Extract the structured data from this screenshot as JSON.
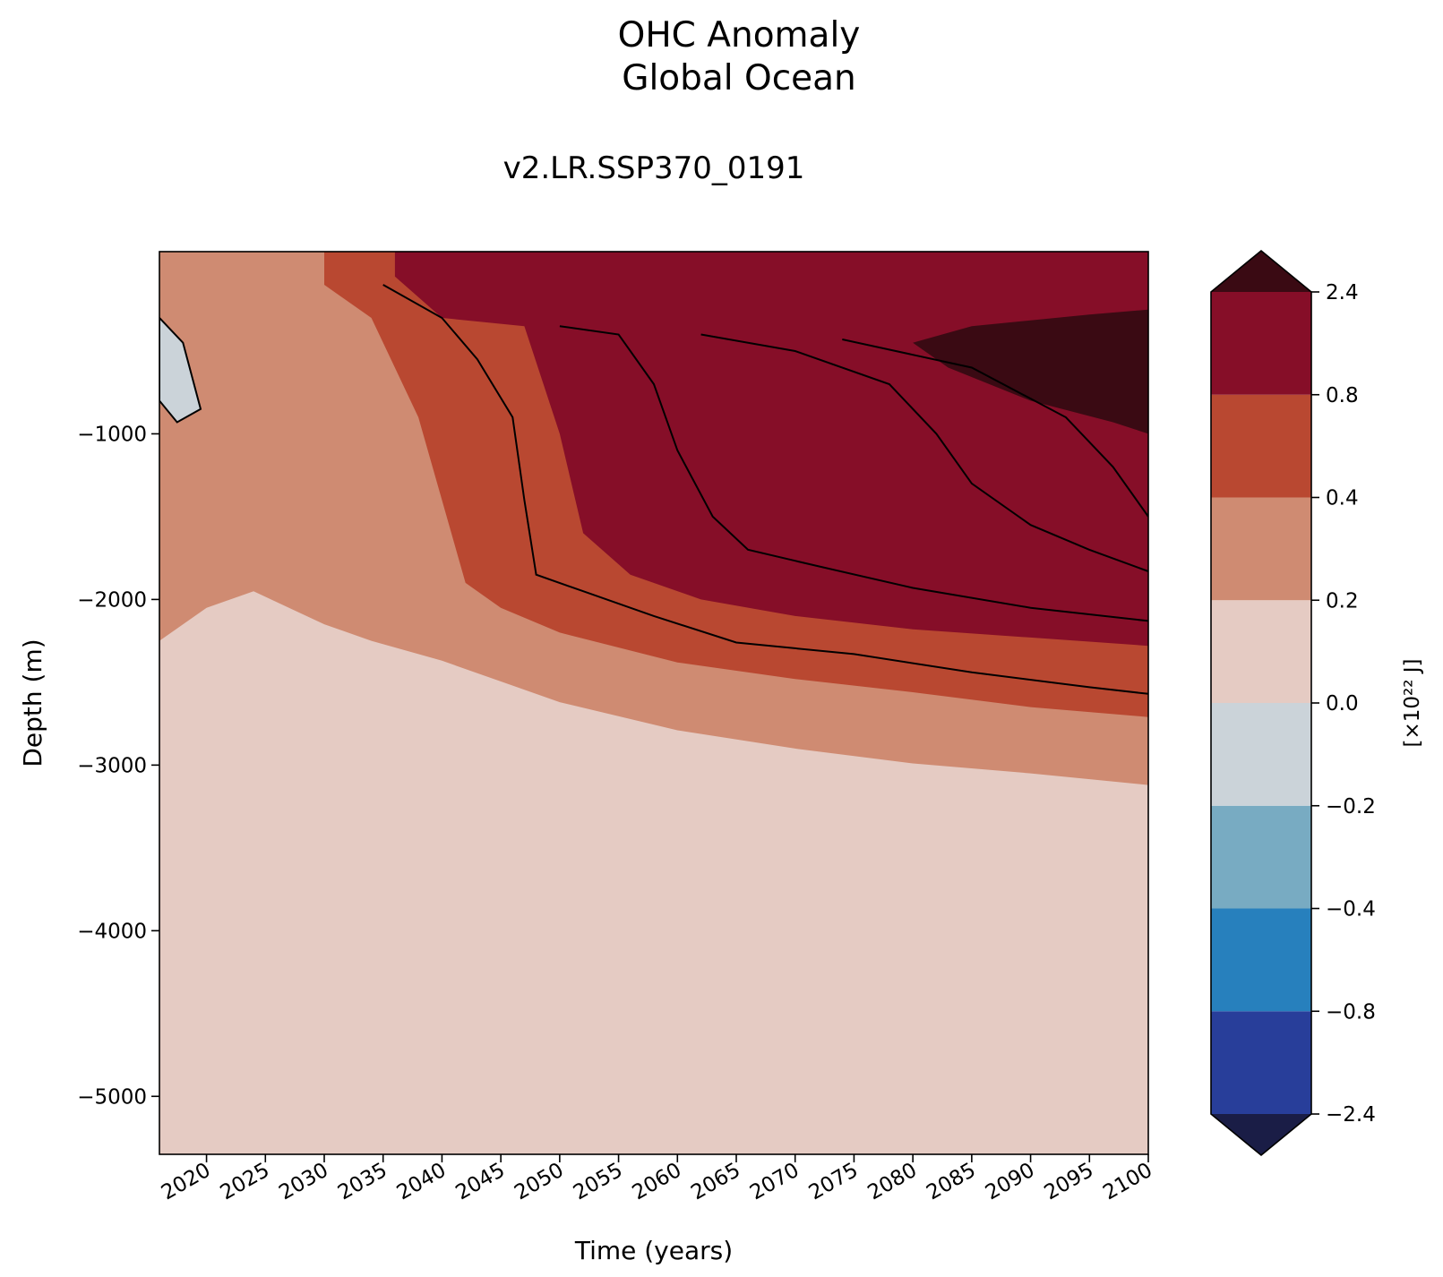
{
  "title_line1": "OHC Anomaly",
  "title_line2": "Global Ocean",
  "subtitle": "v2.LR.SSP370_0191",
  "chart_data": {
    "type": "heatmap",
    "title": "OHC Anomaly Global Ocean",
    "subtitle": "v2.LR.SSP370_0191",
    "xlabel": "Time (years)",
    "ylabel": "Depth (m)",
    "xlim": [
      2016,
      2100
    ],
    "ylim": [
      -5350,
      100
    ],
    "x_ticks": [
      "2020",
      "2025",
      "2030",
      "2035",
      "2040",
      "2045",
      "2050",
      "2055",
      "2060",
      "2065",
      "2070",
      "2075",
      "2080",
      "2085",
      "2090",
      "2095",
      "2100"
    ],
    "y_ticks": [
      -1000,
      -2000,
      -3000,
      -4000,
      -5000
    ],
    "y_tick_labels": [
      "−1000",
      "−2000",
      "−3000",
      "−4000",
      "−5000"
    ],
    "colorbar": {
      "label": "[×10²² J]",
      "levels": [
        "-2.4",
        "-0.8",
        "-0.4",
        "-0.2",
        "0.0",
        "0.2",
        "0.4",
        "0.8",
        "2.4"
      ],
      "level_labels": [
        "−2.4",
        "−0.8",
        "−0.4",
        "−0.2",
        "0.0",
        "0.2",
        "0.4",
        "0.8",
        "2.4"
      ],
      "colors": [
        "#283e9a",
        "#2780bd",
        "#78abc2",
        "#cbd3d9",
        "#e5cbc3",
        "#cf8b72",
        "#b94831",
        "#860e28"
      ],
      "under_color": "#1a1d46",
      "over_color": "#3a0a13",
      "extend": "both"
    },
    "contour_boundaries": [
      {
        "level": "0.2",
        "points": [
          [
            2016,
            -2250
          ],
          [
            2020,
            -2050
          ],
          [
            2024,
            -1950
          ],
          [
            2027,
            -2050
          ],
          [
            2030,
            -2150
          ],
          [
            2034,
            -2250
          ],
          [
            2040,
            -2370
          ],
          [
            2050,
            -2620
          ],
          [
            2060,
            -2790
          ],
          [
            2070,
            -2900
          ],
          [
            2080,
            -2990
          ],
          [
            2090,
            -3050
          ],
          [
            2100,
            -3120
          ]
        ]
      },
      {
        "level": "0.4",
        "points": [
          [
            2030,
            -100
          ],
          [
            2034,
            -300
          ],
          [
            2038,
            -900
          ],
          [
            2040,
            -1400
          ],
          [
            2042,
            -1900
          ],
          [
            2045,
            -2050
          ],
          [
            2050,
            -2200
          ],
          [
            2060,
            -2380
          ],
          [
            2070,
            -2480
          ],
          [
            2080,
            -2560
          ],
          [
            2090,
            -2650
          ],
          [
            2100,
            -2710
          ]
        ]
      },
      {
        "level": "0.8",
        "points": [
          [
            2036,
            -50
          ],
          [
            2040,
            -300
          ],
          [
            2047,
            -350
          ],
          [
            2050,
            -1000
          ],
          [
            2052,
            -1600
          ],
          [
            2056,
            -1850
          ],
          [
            2062,
            -2000
          ],
          [
            2070,
            -2100
          ],
          [
            2080,
            -2180
          ],
          [
            2090,
            -2230
          ],
          [
            2100,
            -2280
          ]
        ]
      },
      {
        "level": "2.4",
        "points": [
          [
            2080,
            -450
          ],
          [
            2085,
            -350
          ],
          [
            2095,
            -280
          ],
          [
            2100,
            -250
          ],
          [
            2100,
            -1000
          ],
          [
            2097,
            -930
          ],
          [
            2090,
            -800
          ],
          [
            2083,
            -600
          ]
        ]
      }
    ],
    "contour_lines": [
      [
        [
          2035,
          -100
        ],
        [
          2040,
          -300
        ],
        [
          2043,
          -550
        ],
        [
          2046,
          -900
        ],
        [
          2047,
          -1400
        ],
        [
          2048,
          -1850
        ],
        [
          2052,
          -1950
        ],
        [
          2058,
          -2100
        ],
        [
          2065,
          -2260
        ],
        [
          2075,
          -2330
        ],
        [
          2085,
          -2440
        ],
        [
          2095,
          -2530
        ],
        [
          2100,
          -2570
        ]
      ],
      [
        [
          2050,
          -350
        ],
        [
          2055,
          -400
        ],
        [
          2058,
          -700
        ],
        [
          2060,
          -1100
        ],
        [
          2063,
          -1500
        ],
        [
          2066,
          -1700
        ],
        [
          2072,
          -1800
        ],
        [
          2080,
          -1930
        ],
        [
          2090,
          -2050
        ],
        [
          2100,
          -2130
        ]
      ],
      [
        [
          2062,
          -400
        ],
        [
          2070,
          -500
        ],
        [
          2078,
          -700
        ],
        [
          2082,
          -1000
        ],
        [
          2085,
          -1300
        ],
        [
          2090,
          -1550
        ],
        [
          2095,
          -1700
        ],
        [
          2100,
          -1830
        ]
      ],
      [
        [
          2074,
          -430
        ],
        [
          2085,
          -600
        ],
        [
          2093,
          -900
        ],
        [
          2097,
          -1200
        ],
        [
          2100,
          -1500
        ]
      ]
    ]
  }
}
